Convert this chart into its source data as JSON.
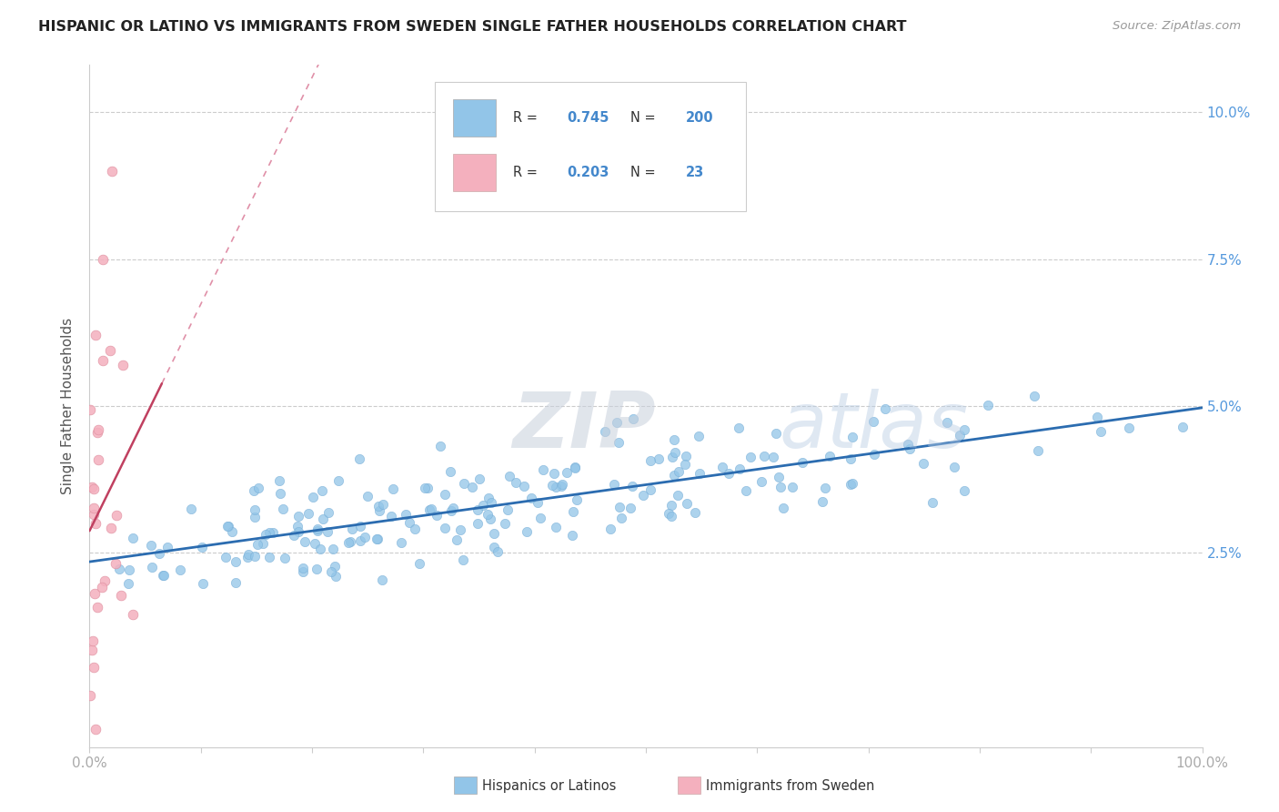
{
  "title": "HISPANIC OR LATINO VS IMMIGRANTS FROM SWEDEN SINGLE FATHER HOUSEHOLDS CORRELATION CHART",
  "source": "Source: ZipAtlas.com",
  "ylabel": "Single Father Households",
  "watermark_zip": "ZIP",
  "watermark_atlas": "atlas",
  "legend_blue_R": "0.745",
  "legend_blue_N": "200",
  "legend_pink_R": "0.203",
  "legend_pink_N": "23",
  "legend_label_blue": "Hispanics or Latinos",
  "legend_label_pink": "Immigrants from Sweden",
  "xlim": [
    0.0,
    1.0
  ],
  "ylim": [
    -0.008,
    0.108
  ],
  "ytick_values": [
    0.025,
    0.05,
    0.075,
    0.1
  ],
  "background_color": "#ffffff",
  "grid_color": "#cccccc",
  "blue_scatter_color": "#92c5e8",
  "blue_scatter_edge": "#7ab0d8",
  "blue_line_color": "#2b6cb0",
  "pink_scatter_color": "#f4b0be",
  "pink_scatter_edge": "#e090a0",
  "pink_line_color": "#c04060",
  "pink_dash_color": "#e090a8",
  "title_color": "#222222",
  "source_color": "#999999",
  "axis_label_color": "#555555",
  "tick_label_color": "#aaaaaa",
  "right_ytick_color": "#5599dd",
  "legend_text_color": "#333333",
  "legend_value_color": "#4488cc",
  "seed": 42,
  "blue_n": 200,
  "pink_n": 23,
  "blue_R": 0.745,
  "pink_R": 0.203,
  "figsize": [
    14.06,
    8.92
  ],
  "dpi": 100
}
